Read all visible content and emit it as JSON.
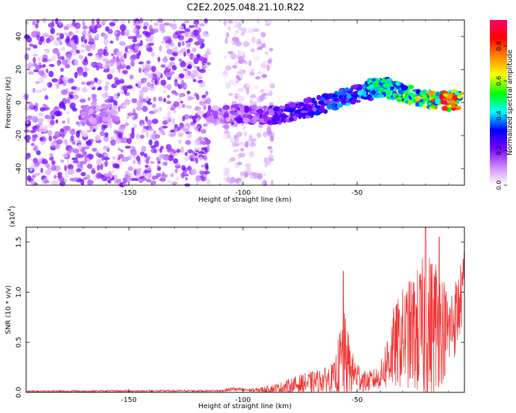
{
  "title": "C2E2.2025.048.21.10.R22",
  "chart_data": [
    {
      "type": "heatmap",
      "name": "spectrogram",
      "xlabel": "Height of straight line (km)",
      "ylabel": "Frequency (Hz)",
      "xlim": [
        -195,
        -3
      ],
      "ylim": [
        -50,
        50
      ],
      "xticks": [
        -150,
        -100,
        -50
      ],
      "yticks": [
        -40,
        -20,
        0,
        20,
        40
      ],
      "xtick_labels": [
        "-150",
        "-100",
        "-50"
      ],
      "ytick_labels": [
        "-40",
        "-20",
        "0",
        "20",
        "40"
      ],
      "colorbar": {
        "label": "Normalized spectral amplitude",
        "range": [
          0,
          0.95
        ],
        "ticks": [
          0.0,
          0.2,
          0.4,
          0.6,
          0.8
        ],
        "tick_labels": [
          "0.0",
          "0.2",
          "0.4",
          "0.6",
          "0.8"
        ],
        "colors": [
          "#ffffff",
          "#cc88ff",
          "#7700ff",
          "#0000ff",
          "#00ffff",
          "#00ff00",
          "#ffff00",
          "#ff8800",
          "#ff0000",
          "#ff0066"
        ]
      },
      "noise_regions": [
        {
          "x_range": [
            -195,
            -115
          ],
          "level": 0.12
        },
        {
          "x_range": [
            -108,
            -87
          ],
          "level": 0.06
        }
      ],
      "band": [
        {
          "x": -170,
          "y": -8,
          "amp": 0.15
        },
        {
          "x": -160,
          "y": -7,
          "amp": 0.12
        },
        {
          "x": -110,
          "y": -8,
          "amp": 0.15
        },
        {
          "x": -100,
          "y": -7,
          "amp": 0.2
        },
        {
          "x": -90,
          "y": -8,
          "amp": 0.22
        },
        {
          "x": -80,
          "y": -6,
          "amp": 0.28
        },
        {
          "x": -70,
          "y": -3,
          "amp": 0.3
        },
        {
          "x": -60,
          "y": 1,
          "amp": 0.35
        },
        {
          "x": -50,
          "y": 5,
          "amp": 0.38
        },
        {
          "x": -40,
          "y": 9,
          "amp": 0.42
        },
        {
          "x": -30,
          "y": 6,
          "amp": 0.55
        },
        {
          "x": -20,
          "y": 2,
          "amp": 0.65
        },
        {
          "x": -10,
          "y": 1,
          "amp": 0.85
        },
        {
          "x": -4,
          "y": 2,
          "amp": 0.7
        }
      ],
      "peak": {
        "x": -12,
        "y": 0,
        "amp": 0.95
      }
    },
    {
      "type": "line",
      "name": "snr",
      "xlabel": "Height of straight line (km)",
      "ylabel": "SNR (10 * v/v)",
      "y_multiplier_label": "(x10",
      "y_multiplier_exp": "4",
      "y_multiplier_close": ")",
      "xlim": [
        -195,
        -3
      ],
      "ylim": [
        0,
        1.65
      ],
      "xticks": [
        -150,
        -100,
        -50
      ],
      "yticks": [
        0.0,
        0.5,
        1.0,
        1.5
      ],
      "xtick_labels": [
        "-150",
        "-100",
        "-50"
      ],
      "ytick_labels": [
        "0.0",
        "0.5",
        "1.0",
        "1.5"
      ],
      "line_color": "#ee3333",
      "envelope": [
        {
          "x": -195,
          "base": 0.01,
          "amp": 0.01
        },
        {
          "x": -110,
          "base": 0.015,
          "amp": 0.01
        },
        {
          "x": -105,
          "base": 0.03,
          "amp": 0.02
        },
        {
          "x": -95,
          "base": 0.02,
          "amp": 0.02
        },
        {
          "x": -85,
          "base": 0.04,
          "amp": 0.05
        },
        {
          "x": -75,
          "base": 0.08,
          "amp": 0.1
        },
        {
          "x": -65,
          "base": 0.12,
          "amp": 0.12
        },
        {
          "x": -60,
          "base": 0.15,
          "amp": 0.15
        },
        {
          "x": -56,
          "base": 0.35,
          "amp": 0.5
        },
        {
          "x": -52,
          "base": 0.2,
          "amp": 0.2
        },
        {
          "x": -46,
          "base": 0.1,
          "amp": 0.1
        },
        {
          "x": -40,
          "base": 0.15,
          "amp": 0.12
        },
        {
          "x": -35,
          "base": 0.4,
          "amp": 0.4
        },
        {
          "x": -30,
          "base": 0.55,
          "amp": 0.5
        },
        {
          "x": -25,
          "base": 0.6,
          "amp": 0.6
        },
        {
          "x": -20,
          "base": 0.6,
          "amp": 0.8
        },
        {
          "x": -15,
          "base": 0.7,
          "amp": 0.7
        },
        {
          "x": -10,
          "base": 0.6,
          "amp": 0.4
        },
        {
          "x": -6,
          "base": 0.8,
          "amp": 0.4
        },
        {
          "x": -3,
          "base": 1.1,
          "amp": 0.3
        }
      ],
      "peaks": [
        {
          "x": -56,
          "y": 1.21
        },
        {
          "x": -20,
          "y": 1.65
        },
        {
          "x": -14,
          "y": 1.55
        },
        {
          "x": -3,
          "y": 1.4
        },
        {
          "x": -104,
          "y": 0.05
        }
      ]
    }
  ]
}
